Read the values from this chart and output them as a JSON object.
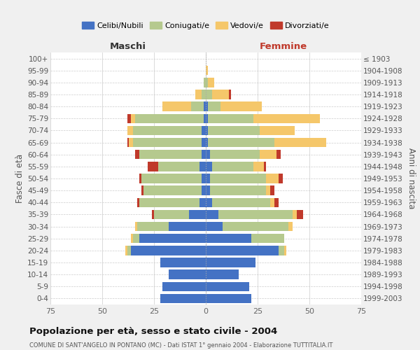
{
  "age_groups": [
    "0-4",
    "5-9",
    "10-14",
    "15-19",
    "20-24",
    "25-29",
    "30-34",
    "35-39",
    "40-44",
    "45-49",
    "50-54",
    "55-59",
    "60-64",
    "65-69",
    "70-74",
    "75-79",
    "80-84",
    "85-89",
    "90-94",
    "95-99",
    "100+"
  ],
  "birth_years": [
    "1999-2003",
    "1994-1998",
    "1989-1993",
    "1984-1988",
    "1979-1983",
    "1974-1978",
    "1969-1973",
    "1964-1968",
    "1959-1963",
    "1954-1958",
    "1949-1953",
    "1944-1948",
    "1939-1943",
    "1934-1938",
    "1929-1933",
    "1924-1928",
    "1919-1923",
    "1914-1918",
    "1909-1913",
    "1904-1908",
    "≤ 1903"
  ],
  "maschi": {
    "celibi": [
      22,
      21,
      18,
      22,
      36,
      32,
      18,
      8,
      3,
      2,
      2,
      3,
      2,
      2,
      2,
      1,
      1,
      0,
      0,
      0,
      0
    ],
    "coniugati": [
      0,
      0,
      0,
      0,
      2,
      3,
      15,
      17,
      29,
      28,
      29,
      20,
      30,
      33,
      33,
      33,
      6,
      2,
      1,
      0,
      0
    ],
    "vedovi": [
      0,
      0,
      0,
      0,
      1,
      1,
      1,
      0,
      0,
      0,
      0,
      0,
      0,
      2,
      3,
      2,
      14,
      3,
      0,
      0,
      0
    ],
    "divorziati": [
      0,
      0,
      0,
      0,
      0,
      0,
      0,
      1,
      1,
      1,
      1,
      5,
      2,
      1,
      0,
      2,
      0,
      0,
      0,
      0,
      0
    ]
  },
  "femmine": {
    "nubili": [
      22,
      21,
      16,
      24,
      35,
      22,
      8,
      6,
      3,
      2,
      2,
      3,
      2,
      1,
      1,
      1,
      1,
      0,
      0,
      0,
      0
    ],
    "coniugate": [
      0,
      0,
      0,
      0,
      3,
      16,
      32,
      36,
      28,
      27,
      27,
      20,
      24,
      32,
      25,
      22,
      6,
      3,
      1,
      0,
      0
    ],
    "vedove": [
      0,
      0,
      0,
      0,
      1,
      0,
      2,
      2,
      2,
      2,
      6,
      5,
      8,
      25,
      17,
      32,
      20,
      8,
      3,
      1,
      0
    ],
    "divorziate": [
      0,
      0,
      0,
      0,
      0,
      0,
      0,
      3,
      2,
      2,
      2,
      1,
      2,
      0,
      0,
      0,
      0,
      1,
      0,
      0,
      0
    ]
  },
  "colors": {
    "celibi": "#4472c4",
    "coniugati": "#b5c98e",
    "vedovi": "#f5c76a",
    "divorziati": "#c0392b"
  },
  "xlim": 75,
  "title": "Popolazione per età, sesso e stato civile - 2004",
  "subtitle": "COMUNE DI SANT'ANGELO IN PONTANO (MC) - Dati ISTAT 1° gennaio 2004 - Elaborazione TUTTITALIA.IT",
  "ylabel_left": "Fasce di età",
  "ylabel_right": "Anni di nascita",
  "header_left": "Maschi",
  "header_right": "Femmine",
  "legend_labels": [
    "Celibi/Nubili",
    "Coniugati/e",
    "Vedovi/e",
    "Divorziati/e"
  ],
  "bg_color": "#f0f0f0",
  "plot_bg": "#ffffff"
}
